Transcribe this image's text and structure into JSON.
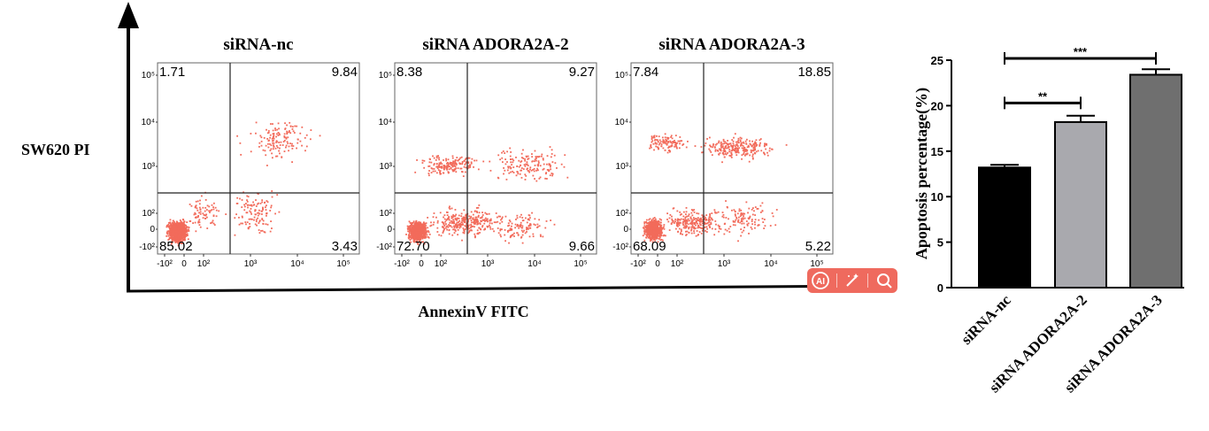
{
  "chart_data": [
    {
      "type": "scatter",
      "ylabel": "SW620 PI",
      "xlabel": "AnnexinV FITC",
      "x_ticks": [
        "-10²",
        "0",
        "10²",
        "10³",
        "10⁴",
        "10⁵"
      ],
      "y_ticks": [
        "10⁵",
        "10⁴",
        "10³",
        "10²",
        "0",
        "-10²"
      ],
      "point_color": "#f26b5b",
      "panels": [
        {
          "title": "siRNA-nc",
          "quadrants": {
            "upper_left": "1.71",
            "upper_right": "9.84",
            "lower_left": "85.02",
            "lower_right": "3.43"
          }
        },
        {
          "title": "siRNA ADORA2A-2",
          "quadrants": {
            "upper_left": "8.38",
            "upper_right": "9.27",
            "lower_left": "72.70",
            "lower_right": "9.66"
          }
        },
        {
          "title": "siRNA ADORA2A-3",
          "quadrants": {
            "upper_left": "7.84",
            "upper_right": "18.85",
            "lower_left": "68.09",
            "lower_right": "5.22"
          }
        }
      ]
    },
    {
      "type": "bar",
      "categories": [
        "siRNA-nc",
        "siRNA ADORA2A-2",
        "siRNA ADORA2A-3"
      ],
      "values": [
        13.2,
        18.2,
        23.4
      ],
      "errors": [
        0.3,
        0.7,
        0.6
      ],
      "colors": [
        "#000000",
        "#a9a9ae",
        "#6f6f6f"
      ],
      "ylabel": "Apoptosis percentage(%)",
      "ylim": [
        0,
        25
      ],
      "yticks": [
        0,
        5,
        10,
        15,
        20,
        25
      ],
      "significance": [
        {
          "from": 0,
          "to": 1,
          "label": "**"
        },
        {
          "from": 0,
          "to": 2,
          "label": "***"
        }
      ]
    }
  ],
  "toolbar": {
    "icons": [
      "ai-icon",
      "magic-wand-icon",
      "search-icon"
    ],
    "ai_label": "AI"
  }
}
